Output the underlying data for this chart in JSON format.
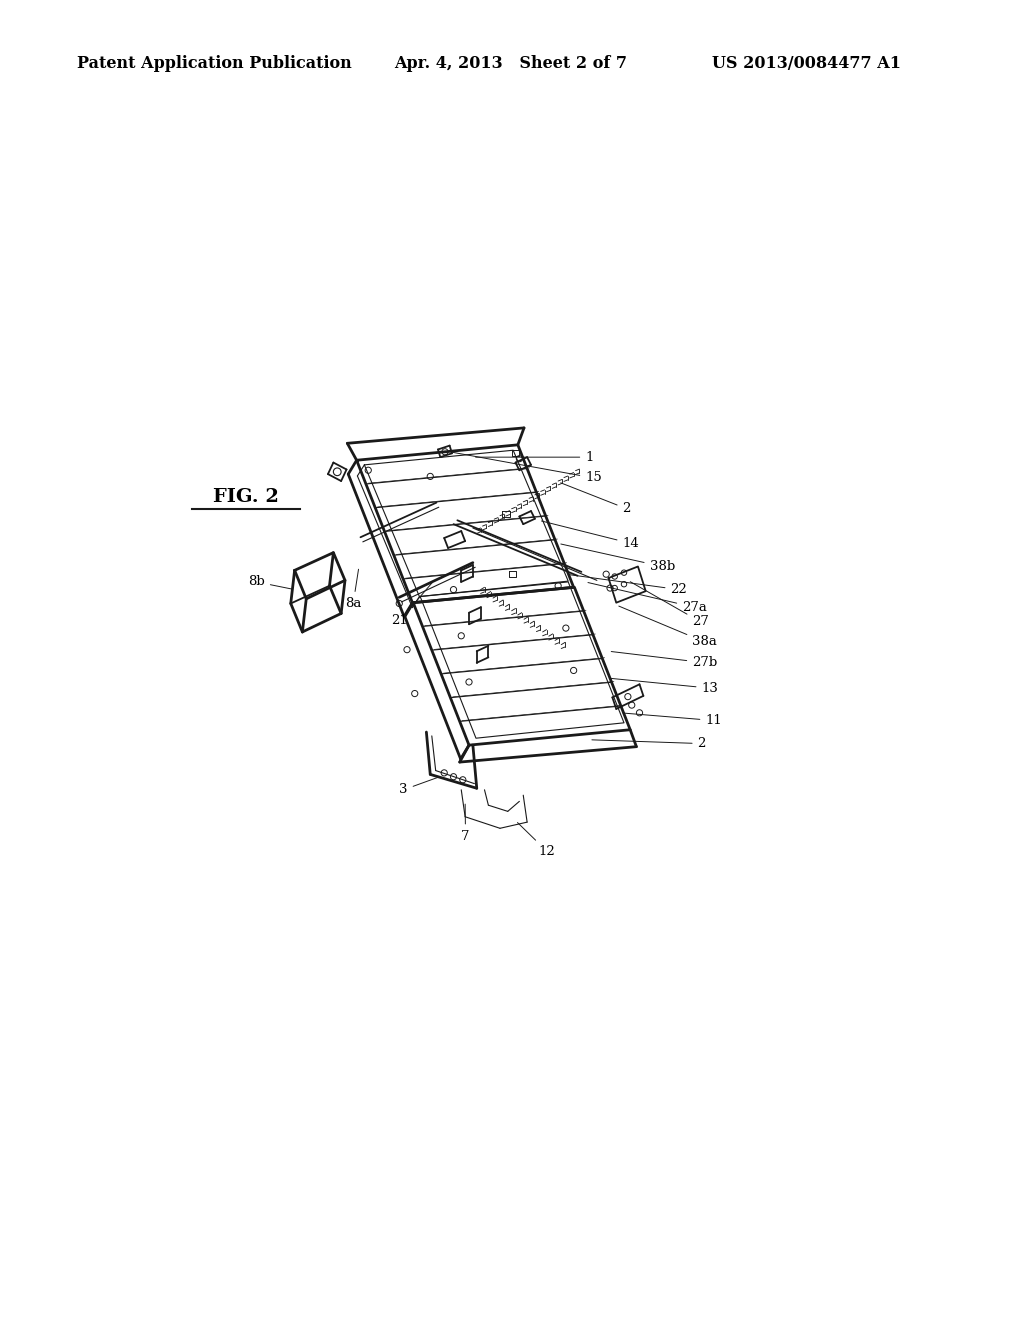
{
  "background_color": "#ffffff",
  "header_left": "Patent Application Publication",
  "header_center": "Apr. 4, 2013   Sheet 2 of 7",
  "header_right": "US 2013/0084477 A1",
  "fig_label": "FIG. 2",
  "header_fontsize": 11.5,
  "fig_label_fontsize": 14,
  "line_color": "#1a1a1a",
  "annotation_fontsize": 9.5
}
